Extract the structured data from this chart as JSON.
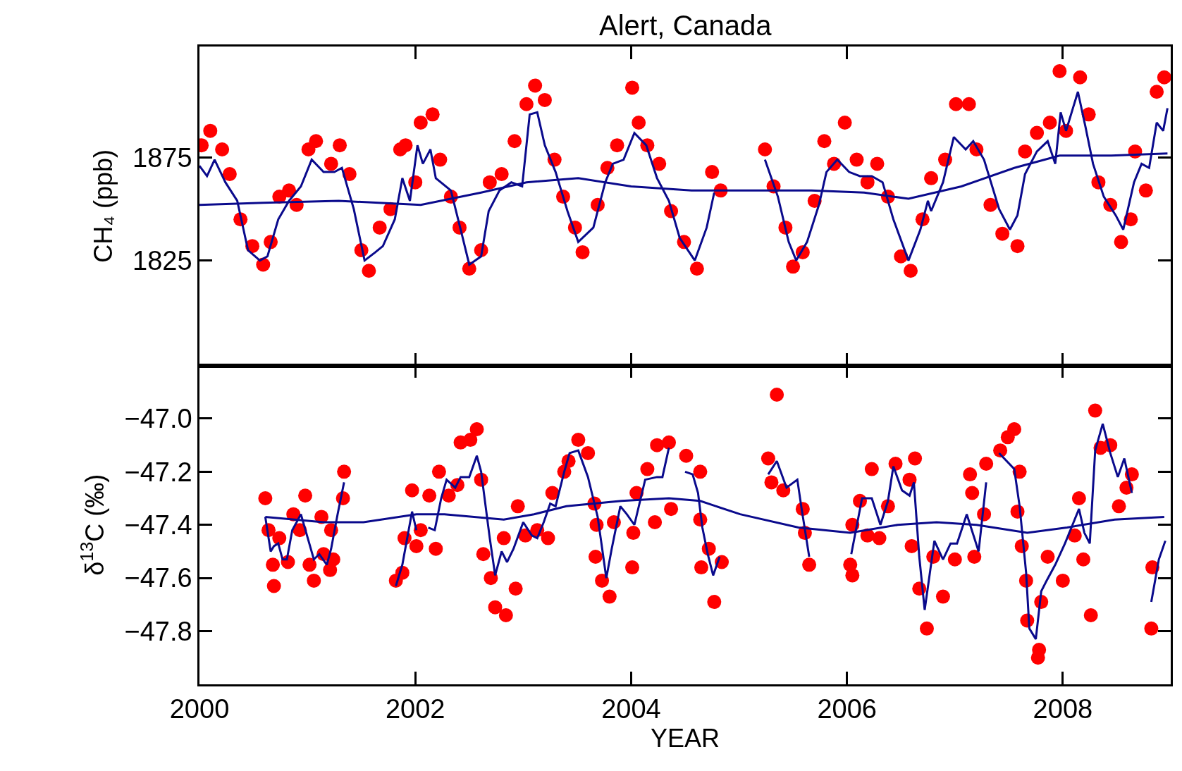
{
  "chart_data": [
    {
      "type": "scatter",
      "title": "Alert, Canada",
      "ylabel": "CH₄ (ppb)",
      "xlim": [
        2000,
        2009
      ],
      "xticks": [
        2000,
        2002,
        2004,
        2006,
        2008
      ],
      "ylim": [
        1774,
        1929
      ],
      "yticks": [
        1825,
        1875
      ],
      "tick_labels": "y",
      "series": [
        {
          "marker": "circle",
          "color": "#ff0000",
          "x": [
            2000.02,
            2000.1,
            2000.21,
            2000.28,
            2000.38,
            2000.49,
            2000.59,
            2000.66,
            2000.74,
            2000.83,
            2000.9,
            2001.01,
            2001.08,
            2001.22,
            2001.3,
            2001.39,
            2001.5,
            2001.57,
            2001.67,
            2001.77,
            2001.86,
            2001.91,
            2002.0,
            2002.05,
            2002.16,
            2002.23,
            2002.33,
            2002.41,
            2002.5,
            2002.61,
            2002.69,
            2002.8,
            2002.92,
            2003.03,
            2003.11,
            2003.2,
            2003.29,
            2003.37,
            2003.48,
            2003.55,
            2003.69,
            2003.78,
            2003.87,
            2004.01,
            2004.07,
            2004.15,
            2004.26,
            2004.37,
            2004.49,
            2004.61,
            2004.75,
            2004.83,
            2005.24,
            2005.32,
            2005.43,
            2005.5,
            2005.59,
            2005.7,
            2005.79,
            2005.88,
            2005.98,
            2006.09,
            2006.19,
            2006.28,
            2006.38,
            2006.5,
            2006.59,
            2006.7,
            2006.78,
            2006.91,
            2007.01,
            2007.13,
            2007.2,
            2007.33,
            2007.44,
            2007.58,
            2007.65,
            2007.76,
            2007.88,
            2007.97,
            2008.03,
            2008.16,
            2008.24,
            2008.33,
            2008.44,
            2008.54,
            2008.63,
            2008.67,
            2008.77,
            2008.87,
            2008.94
          ],
          "values": [
            1881,
            1888,
            1879,
            1867,
            1845,
            1832,
            1823,
            1834,
            1856,
            1859,
            1852,
            1879,
            1883,
            1872,
            1881,
            1867,
            1830,
            1820,
            1841,
            1850,
            1879,
            1881,
            1863,
            1892,
            1896,
            1874,
            1856,
            1841,
            1821,
            1830,
            1863,
            1867,
            1883,
            1901,
            1910,
            1903,
            1874,
            1856,
            1841,
            1829,
            1852,
            1870,
            1881,
            1909,
            1892,
            1881,
            1872,
            1849,
            1834,
            1821,
            1868,
            1859,
            1879,
            1861,
            1841,
            1822,
            1829,
            1854,
            1883,
            1872,
            1892,
            1874,
            1863,
            1872,
            1856,
            1827,
            1820,
            1845,
            1865,
            1874,
            1901,
            1901,
            1879,
            1852,
            1838,
            1832,
            1878,
            1887,
            1892,
            1917,
            1888,
            1914,
            1896,
            1863,
            1852,
            1834,
            1845,
            1878,
            1859,
            1907,
            1914
          ]
        },
        {
          "type": "line",
          "color": "#0a0a8c",
          "x": [
            2000.0,
            2000.07,
            2000.14,
            2000.24,
            2000.35,
            2000.45,
            2000.56,
            2000.63,
            2000.73,
            2000.83,
            2000.94,
            2001.04,
            2001.15,
            2001.25,
            2001.32,
            2001.43,
            2001.53,
            2001.63,
            2001.7,
            2001.81,
            2001.88,
            2001.95,
            2002.02,
            2002.07,
            2002.14,
            2002.19,
            2002.33,
            2002.43,
            2002.5,
            2002.61,
            2002.68,
            2002.78,
            2002.89,
            2002.99,
            2003.06,
            2003.13,
            2003.2,
            2003.3,
            2003.41,
            2003.51,
            2003.65,
            2003.76,
            2003.83,
            2003.93,
            2004.03,
            2004.14,
            2004.24,
            2004.35,
            2004.45,
            2004.59,
            2004.7,
            2004.77,
            2005.0,
            2005.24,
            2005.36,
            2005.46,
            2005.53,
            2005.63,
            2005.74,
            2005.81,
            2005.91,
            2006.02,
            2006.12,
            2006.23,
            2006.33,
            2006.43,
            2006.57,
            2006.68,
            2006.75,
            2006.78,
            2006.89,
            2006.99,
            2007.1,
            2007.17,
            2007.27,
            2007.41,
            2007.51,
            2007.58,
            2007.65,
            2007.76,
            2007.86,
            2007.93,
            2007.98,
            2008.03,
            2008.14,
            2008.21,
            2008.28,
            2008.38,
            2008.49,
            2008.56,
            2008.66,
            2008.73,
            2008.8,
            2008.87,
            2008.93,
            2008.97
          ],
          "values": [
            1871,
            1866,
            1874,
            1863,
            1854,
            1830,
            1825,
            1827,
            1845,
            1854,
            1861,
            1874,
            1868,
            1868,
            1870,
            1850,
            1825,
            1829,
            1832,
            1845,
            1865,
            1854,
            1881,
            1872,
            1879,
            1865,
            1859,
            1838,
            1823,
            1827,
            1849,
            1859,
            1863,
            1861,
            1896,
            1897,
            1881,
            1868,
            1849,
            1834,
            1841,
            1863,
            1872,
            1874,
            1887,
            1881,
            1865,
            1854,
            1836,
            1825,
            1841,
            1858,
            null,
            1874,
            1856,
            1834,
            1825,
            1834,
            1852,
            1868,
            1874,
            1868,
            1866,
            1866,
            1863,
            1845,
            1825,
            1840,
            1854,
            1849,
            1863,
            1885,
            1879,
            1883,
            1874,
            1850,
            1840,
            1847,
            1867,
            1878,
            1883,
            1872,
            1897,
            1888,
            1907,
            1890,
            1872,
            1856,
            1847,
            1840,
            1863,
            1872,
            1870,
            1892,
            1888,
            1899
          ]
        },
        {
          "type": "line",
          "color": "#0a0a8c",
          "x": [
            2000.0,
            2000.59,
            2001.29,
            2002.05,
            2002.61,
            2003.03,
            2003.51,
            2004.0,
            2004.56,
            2005.11,
            2005.67,
            2006.16,
            2006.57,
            2007.06,
            2007.55,
            2007.97,
            2008.45,
            2008.97
          ],
          "values": [
            1852,
            1853,
            1854,
            1852,
            1858,
            1863,
            1865,
            1861,
            1859,
            1859,
            1859,
            1858,
            1855,
            1861,
            1870,
            1876,
            1876,
            1877
          ]
        }
      ]
    },
    {
      "type": "scatter",
      "xlabel": "YEAR",
      "ylabel": "δ$^{13}$C (‰)",
      "xlim": [
        2000,
        2009
      ],
      "xticks": [
        2000,
        2002,
        2004,
        2006,
        2008
      ],
      "ylim": [
        -48.0,
        -46.8
      ],
      "yticks": [
        {
          "value": -47.0,
          "label": "−47.0"
        },
        {
          "value": -47.2,
          "label": "−47.2"
        },
        {
          "value": -47.4,
          "label": "−47.4"
        },
        {
          "value": -47.6,
          "label": "−47.6"
        },
        {
          "value": -47.8,
          "label": "−47.8"
        }
      ],
      "series": [
        {
          "marker": "circle",
          "color": "#ff0000",
          "x": [
            2000.61,
            2000.64,
            2000.68,
            2000.69,
            2000.74,
            2000.82,
            2000.87,
            2000.93,
            2000.98,
            2001.02,
            2001.06,
            2001.13,
            2001.15,
            2001.21,
            2001.24,
            2001.22,
            2001.33,
            2001.34,
            2001.82,
            2001.88,
            2001.9,
            2001.97,
            2002.01,
            2002.05,
            2002.13,
            2002.19,
            2002.22,
            2002.31,
            2002.39,
            2002.42,
            2002.51,
            2002.57,
            2002.61,
            2002.63,
            2002.7,
            2002.74,
            2002.84,
            2002.82,
            2002.93,
            2002.95,
            2003.02,
            2003.13,
            2003.23,
            2003.27,
            2003.38,
            2003.42,
            2003.51,
            2003.6,
            2003.66,
            2003.68,
            2003.67,
            2003.73,
            2003.8,
            2003.84,
            2004.01,
            2004.02,
            2004.05,
            2004.15,
            2004.22,
            2004.24,
            2004.35,
            2004.37,
            2004.51,
            2004.64,
            2004.64,
            2004.65,
            2004.72,
            2004.77,
            2004.84,
            2005.35,
            2005.27,
            2005.3,
            2005.41,
            2005.59,
            2005.61,
            2005.65,
            2006.03,
            2006.05,
            2006.05,
            2006.12,
            2006.23,
            2006.19,
            2006.3,
            2006.38,
            2006.45,
            2006.58,
            2006.63,
            2006.6,
            2006.67,
            2006.74,
            2006.8,
            2006.89,
            2007.0,
            2007.14,
            2007.16,
            2007.18,
            2007.27,
            2007.29,
            2007.42,
            2007.55,
            2007.49,
            2007.6,
            2007.58,
            2007.62,
            2007.66,
            2007.67,
            2007.78,
            2007.77,
            2007.8,
            2007.86,
            2008.0,
            2008.11,
            2008.15,
            2008.19,
            2008.26,
            2008.3,
            2008.35,
            2008.44,
            2008.52,
            2008.59,
            2008.64,
            2008.83,
            2008.82
          ],
          "values": [
            -47.3,
            -47.42,
            -47.55,
            -47.63,
            -47.45,
            -47.54,
            -47.36,
            -47.42,
            -47.29,
            -47.55,
            -47.61,
            -47.37,
            -47.51,
            -47.57,
            -47.53,
            -47.42,
            -47.3,
            -47.2,
            -47.61,
            -47.58,
            -47.45,
            -47.27,
            -47.48,
            -47.42,
            -47.29,
            -47.49,
            -47.2,
            -47.29,
            -47.25,
            -47.09,
            -47.08,
            -47.04,
            -47.23,
            -47.51,
            -47.6,
            -47.71,
            -47.74,
            -47.45,
            -47.64,
            -47.33,
            -47.44,
            -47.42,
            -47.45,
            -47.28,
            -47.2,
            -47.16,
            -47.08,
            -47.13,
            -47.32,
            -47.4,
            -47.52,
            -47.61,
            -47.67,
            -47.39,
            -47.56,
            -47.43,
            -47.28,
            -47.19,
            -47.39,
            -47.1,
            -47.09,
            -47.34,
            -47.14,
            -47.2,
            -47.38,
            -47.56,
            -47.49,
            -47.69,
            -47.54,
            -46.91,
            -47.15,
            -47.24,
            -47.27,
            -47.34,
            -47.43,
            -47.55,
            -47.55,
            -47.59,
            -47.4,
            -47.31,
            -47.19,
            -47.44,
            -47.45,
            -47.33,
            -47.17,
            -47.23,
            -47.15,
            -47.48,
            -47.64,
            -47.79,
            -47.52,
            -47.67,
            -47.53,
            -47.21,
            -47.28,
            -47.52,
            -47.36,
            -47.17,
            -47.12,
            -47.04,
            -47.07,
            -47.2,
            -47.35,
            -47.48,
            -47.61,
            -47.76,
            -47.87,
            -47.9,
            -47.69,
            -47.52,
            -47.61,
            -47.44,
            -47.3,
            -47.53,
            -47.74,
            -46.97,
            -47.11,
            -47.1,
            -47.33,
            -47.26,
            -47.21,
            -47.56,
            -47.79
          ]
        },
        {
          "type": "line",
          "color": "#0a0a8c",
          "x": [
            2000.61,
            2000.66,
            2000.69,
            2000.73,
            2000.77,
            2000.81,
            2000.86,
            2000.94,
            2001.06,
            2001.11,
            2001.18,
            2001.22,
            2001.28,
            2001.34,
            2001.6,
            2001.82,
            2001.88,
            2001.97,
            2002.01,
            2002.07,
            2002.12,
            2002.18,
            2002.24,
            2002.29,
            2002.37,
            2002.42,
            2002.5,
            2002.57,
            2002.61,
            2002.69,
            2002.74,
            2002.8,
            2002.85,
            2002.91,
            2003.0,
            2003.08,
            2003.13,
            2003.19,
            2003.25,
            2003.3,
            2003.38,
            2003.43,
            2003.51,
            2003.6,
            2003.69,
            2003.77,
            2003.82,
            2003.9,
            2003.96,
            2004.03,
            2004.13,
            2004.24,
            2004.29,
            2004.35,
            2004.42,
            2004.5,
            2004.57,
            2004.62,
            2004.66,
            2004.71,
            2004.76,
            2004.82,
            2005.0,
            2005.27,
            2005.35,
            2005.44,
            2005.54,
            2005.58,
            2005.65,
            2005.85,
            2006.04,
            2006.14,
            2006.23,
            2006.31,
            2006.38,
            2006.43,
            2006.51,
            2006.58,
            2006.62,
            2006.67,
            2006.72,
            2006.81,
            2006.89,
            2006.96,
            2007.02,
            2007.11,
            2007.22,
            2007.29,
            2007.35,
            2007.41,
            2007.55,
            2007.6,
            2007.66,
            2007.69,
            2007.75,
            2007.8,
            2007.85,
            2007.93,
            2008.02,
            2008.1,
            2008.15,
            2008.2,
            2008.25,
            2008.3,
            2008.37,
            2008.44,
            2008.51,
            2008.57,
            2008.64,
            2008.73,
            2008.82,
            2008.89,
            2008.95
          ],
          "values": [
            -47.37,
            -47.5,
            -47.48,
            -47.47,
            -47.53,
            -47.53,
            -47.42,
            -47.36,
            -47.53,
            -47.51,
            -47.55,
            -47.49,
            -47.36,
            -47.24,
            null,
            -47.63,
            -47.55,
            -47.35,
            -47.42,
            null,
            -47.41,
            -47.42,
            -47.3,
            -47.23,
            -47.26,
            -47.22,
            -47.22,
            -47.14,
            -47.2,
            -47.45,
            -47.59,
            -47.5,
            -47.54,
            -47.49,
            -47.39,
            -47.44,
            -47.45,
            -47.39,
            -47.32,
            -47.33,
            -47.2,
            -47.13,
            -47.12,
            -47.22,
            -47.37,
            -47.6,
            -47.49,
            -47.33,
            -47.36,
            -47.4,
            -47.23,
            -47.22,
            -47.22,
            -47.11,
            null,
            -47.2,
            -47.21,
            -47.28,
            -47.41,
            -47.51,
            -47.59,
            -47.52,
            null,
            -47.21,
            -47.16,
            -47.26,
            -47.23,
            -47.34,
            -47.52,
            null,
            -47.51,
            -47.3,
            -47.3,
            -47.4,
            -47.31,
            -47.18,
            -47.27,
            -47.29,
            -47.24,
            -47.52,
            -47.72,
            -47.46,
            -47.53,
            -47.47,
            -47.47,
            -47.36,
            -47.5,
            -47.24,
            null,
            -47.13,
            -47.19,
            -47.33,
            -47.58,
            -47.79,
            -47.83,
            -47.65,
            -47.61,
            -47.55,
            -47.47,
            -47.39,
            -47.34,
            -47.43,
            -47.47,
            -47.12,
            -47.02,
            -47.13,
            -47.22,
            -47.15,
            -47.28,
            null,
            -47.69,
            -47.53,
            -47.46
          ]
        },
        {
          "type": "line",
          "color": "#0a0a8c",
          "x": [
            2000.61,
            2001.15,
            2001.52,
            2002.01,
            2002.27,
            2002.82,
            2003.1,
            2003.4,
            2003.91,
            2004.35,
            2004.64,
            2005.01,
            2005.55,
            2006.03,
            2006.47,
            2006.83,
            2007.2,
            2007.67,
            2008.04,
            2008.48,
            2008.94
          ],
          "values": [
            -47.37,
            -47.39,
            -47.39,
            -47.36,
            -47.36,
            -47.38,
            -47.36,
            -47.33,
            -47.31,
            -47.3,
            -47.31,
            -47.36,
            -47.41,
            -47.43,
            -47.4,
            -47.39,
            -47.4,
            -47.43,
            -47.41,
            -47.38,
            -47.37
          ]
        }
      ]
    }
  ]
}
